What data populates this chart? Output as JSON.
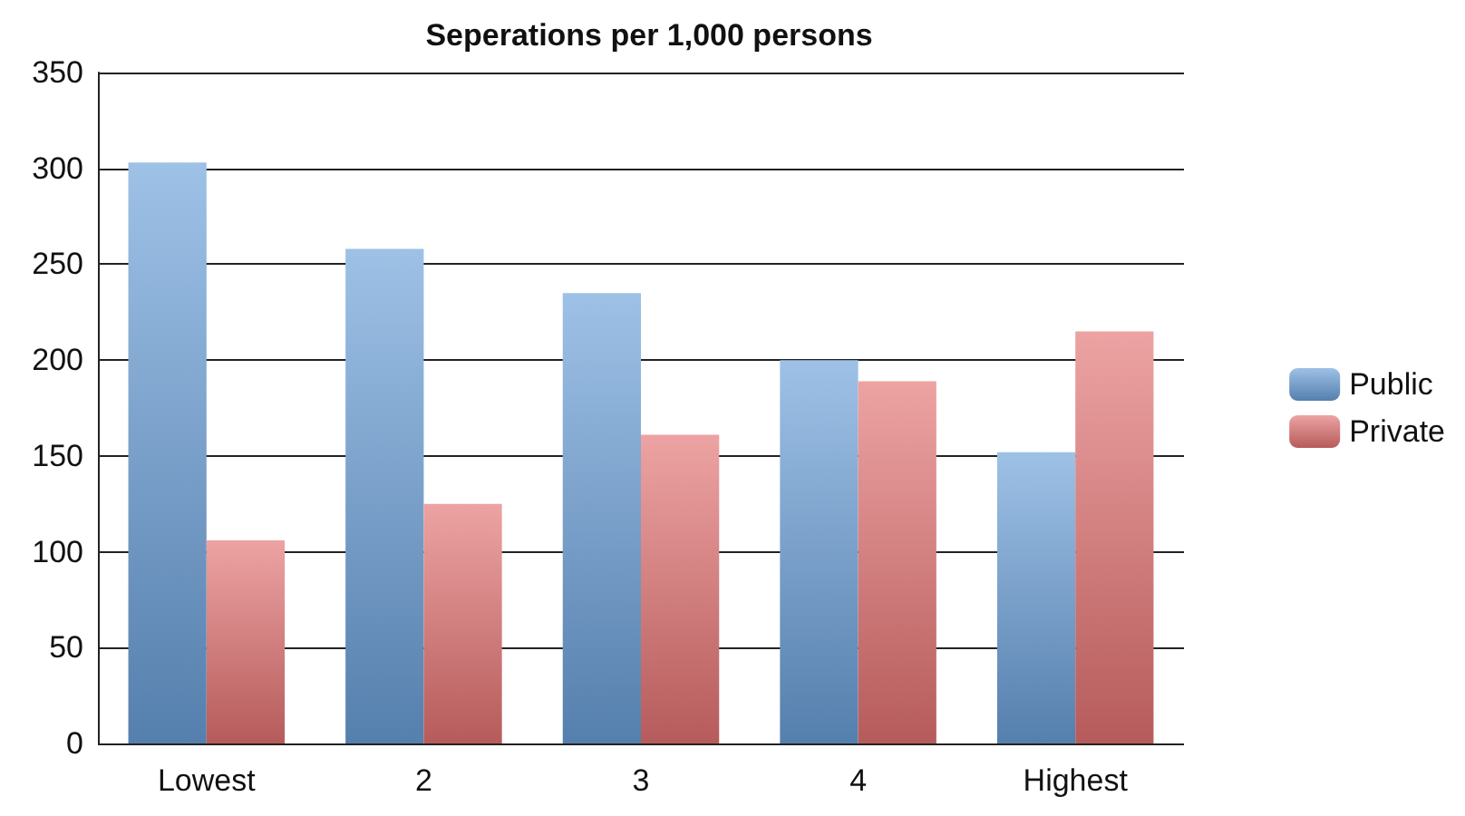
{
  "chart_data": {
    "type": "bar",
    "title": "Seperations per 1,000 persons",
    "categories": [
      "Lowest",
      "2",
      "3",
      "4",
      "Highest"
    ],
    "series": [
      {
        "name": "Public",
        "color": "#6a9fd8",
        "values": [
          303,
          258,
          235,
          200,
          152
        ]
      },
      {
        "name": "Private",
        "color": "#e47272",
        "values": [
          106,
          125,
          161,
          189,
          215
        ]
      }
    ],
    "ylim": [
      0,
      350
    ],
    "yticks": [
      0,
      50,
      100,
      150,
      200,
      250,
      300,
      350
    ],
    "grid": "y",
    "legend": "right"
  }
}
